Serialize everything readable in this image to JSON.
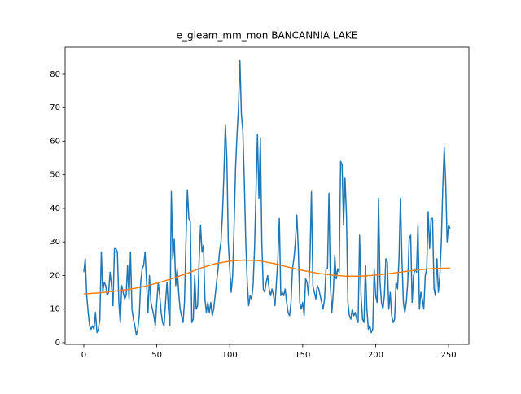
{
  "chart_data": {
    "type": "line",
    "title": "e_gleam_mm_mon BANCANNIA LAKE",
    "xlim": [
      -12.8,
      263.9
    ],
    "ylim": [
      -0.5,
      88.0
    ],
    "xticks": [
      0,
      50,
      100,
      150,
      200,
      250
    ],
    "yticks": [
      0,
      10,
      20,
      30,
      40,
      50,
      60,
      70,
      80
    ],
    "series": [
      {
        "color": "#1f77b4",
        "x": [
          0,
          1,
          2,
          3,
          4,
          5,
          6,
          7,
          8,
          9,
          10,
          11,
          12,
          13,
          14,
          15,
          16,
          17,
          18,
          19,
          20,
          21,
          22,
          23,
          24,
          25,
          26,
          27,
          28,
          29,
          30,
          31,
          32,
          33,
          34,
          35,
          36,
          37,
          38,
          39,
          40,
          41,
          42,
          43,
          44,
          45,
          46,
          47,
          48,
          49,
          50,
          51,
          52,
          53,
          54,
          55,
          56,
          57,
          58,
          59,
          60,
          61,
          62,
          63,
          64,
          65,
          66,
          67,
          68,
          69,
          70,
          71,
          72,
          73,
          74,
          75,
          76,
          77,
          78,
          79,
          80,
          81,
          82,
          83,
          84,
          85,
          86,
          87,
          88,
          89,
          90,
          91,
          92,
          93,
          94,
          95,
          96,
          97,
          98,
          99,
          100,
          101,
          102,
          103,
          104,
          105,
          106,
          107,
          108,
          109,
          110,
          111,
          112,
          113,
          114,
          115,
          116,
          117,
          118,
          119,
          120,
          121,
          122,
          123,
          124,
          125,
          126,
          127,
          128,
          129,
          130,
          131,
          132,
          133,
          134,
          135,
          136,
          137,
          138,
          139,
          140,
          141,
          142,
          143,
          144,
          145,
          146,
          147,
          148,
          149,
          150,
          151,
          152,
          153,
          154,
          155,
          156,
          157,
          158,
          159,
          160,
          161,
          162,
          163,
          164,
          165,
          166,
          167,
          168,
          169,
          170,
          171,
          172,
          173,
          174,
          175,
          176,
          177,
          178,
          179,
          180,
          181,
          182,
          183,
          184,
          185,
          186,
          187,
          188,
          189,
          190,
          191,
          192,
          193,
          194,
          195,
          196,
          197,
          198,
          199,
          200,
          201,
          202,
          203,
          204,
          205,
          206,
          207,
          208,
          209,
          210,
          211,
          212,
          213,
          214,
          215,
          216,
          217,
          218,
          219,
          220,
          221,
          222,
          223,
          224,
          225,
          226,
          227,
          228,
          229,
          230,
          231,
          232,
          233,
          234,
          235,
          236,
          237,
          238,
          239,
          240,
          241,
          242,
          243,
          244,
          245,
          246,
          247,
          248,
          249,
          250,
          251
        ],
        "values": [
          21,
          25,
          14,
          9,
          5,
          4,
          5,
          4,
          9,
          3,
          4,
          7,
          27,
          15,
          18,
          17,
          14,
          15,
          21,
          17,
          11,
          28,
          28,
          27,
          12,
          6,
          17,
          15,
          13,
          14,
          23,
          13,
          27,
          10,
          7,
          5,
          2.3,
          4,
          8,
          18,
          22,
          23,
          27,
          18,
          9,
          20,
          12,
          10,
          8,
          5,
          12,
          18,
          14,
          9,
          6,
          5,
          12,
          18,
          10,
          5,
          45,
          25,
          31,
          17,
          22,
          15,
          10,
          8,
          6,
          12,
          30,
          45.5,
          37,
          36,
          6,
          7,
          20,
          10,
          11,
          24,
          35,
          27,
          29,
          13,
          9,
          12,
          9,
          12,
          8,
          10,
          14,
          18,
          22,
          27,
          30,
          38,
          50,
          65,
          55,
          30,
          22,
          15,
          20,
          35,
          52,
          62,
          70,
          84,
          68,
          63,
          48,
          30,
          18,
          11,
          14,
          13,
          17,
          28,
          45,
          62,
          43,
          61,
          30,
          16,
          15,
          18,
          20,
          16,
          14,
          16,
          14,
          11,
          18,
          25,
          37,
          14,
          15,
          14,
          16,
          12,
          9,
          8,
          12,
          22,
          25,
          30,
          38,
          28,
          12,
          10,
          12,
          8,
          19,
          18,
          14,
          25,
          45,
          17,
          15,
          13,
          17,
          16,
          14,
          12,
          10,
          13,
          22,
          22,
          44.5,
          17,
          9,
          15,
          26,
          19,
          22,
          21,
          54,
          53,
          35,
          49,
          38,
          12,
          8,
          7,
          10,
          8,
          9,
          7,
          6,
          32,
          14,
          7,
          6,
          23,
          10,
          4,
          5,
          3,
          4,
          22,
          14,
          12,
          43,
          18,
          12,
          10,
          14,
          25,
          24,
          10,
          15,
          8,
          6,
          7,
          18,
          16,
          25,
          43,
          25,
          12,
          9,
          12,
          18,
          31,
          32,
          12,
          20,
          22,
          21,
          35,
          10,
          15,
          13,
          10,
          20,
          22,
          39,
          28,
          37,
          37,
          16,
          14,
          25,
          15,
          20,
          30,
          46,
          58,
          48,
          30,
          35,
          34
        ]
      },
      {
        "color": "#ff7f0e",
        "x": [
          0,
          10,
          20,
          30,
          40,
          50,
          60,
          70,
          80,
          90,
          100,
          110,
          120,
          130,
          140,
          150,
          160,
          170,
          180,
          190,
          200,
          210,
          220,
          230,
          240,
          251
        ],
        "values": [
          14.5,
          14.8,
          15.3,
          15.8,
          16.6,
          17.7,
          19,
          20.5,
          22.2,
          23.5,
          24.3,
          24.6,
          24.4,
          23.6,
          22.5,
          21.5,
          20.7,
          20.1,
          19.8,
          19.8,
          20.1,
          20.6,
          21.2,
          21.7,
          22.1,
          22.2
        ]
      }
    ]
  }
}
